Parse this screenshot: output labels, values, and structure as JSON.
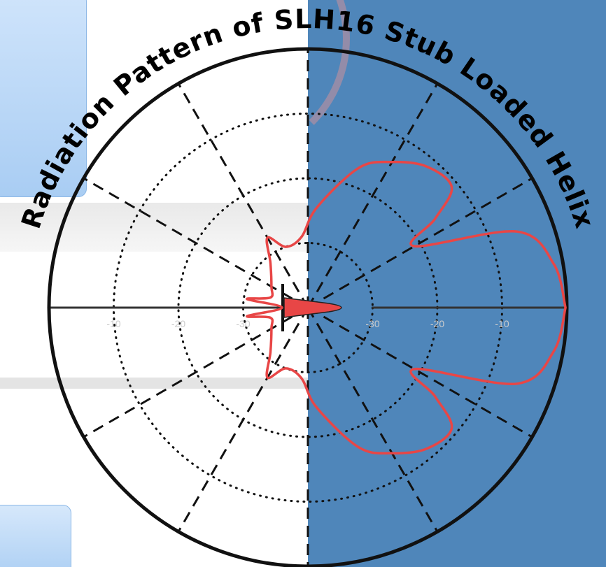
{
  "chart_data": {
    "type": "polar",
    "title": "Radiation Pattern of SLH16 Stub Loaded Helix",
    "radial_tick_labels_left": [
      "-10",
      "-20",
      "-30"
    ],
    "radial_tick_labels_right": [
      "-30",
      "-20",
      "-10"
    ],
    "radial_range_db": [
      -40,
      0
    ],
    "angular_gridline_spacing_deg": 30,
    "series": [
      {
        "color": "#e84646",
        "points": [
          {
            "angle_deg": 0,
            "db": -0.2
          },
          {
            "angle_deg": 10,
            "db": -1.4
          },
          {
            "angle_deg": 20,
            "db": -5.6
          },
          {
            "angle_deg": 30,
            "db": -21.0
          },
          {
            "angle_deg": 35,
            "db": -16.0
          },
          {
            "angle_deg": 40,
            "db": -11.0
          },
          {
            "angle_deg": 50,
            "db": -11.5
          },
          {
            "angle_deg": 60,
            "db": -14.0
          },
          {
            "angle_deg": 70,
            "db": -17.0
          },
          {
            "angle_deg": 85,
            "db": -24.5
          },
          {
            "angle_deg": 95,
            "db": -29.0
          },
          {
            "angle_deg": 110,
            "db": -30.0
          },
          {
            "angle_deg": 120,
            "db": -27.5
          },
          {
            "angle_deg": 130,
            "db": -31.0
          },
          {
            "angle_deg": 150,
            "db": -33.5
          },
          {
            "angle_deg": 165,
            "db": -34.0
          },
          {
            "angle_deg": 172,
            "db": -30.5
          },
          {
            "angle_deg": 180,
            "db": -36.0
          },
          {
            "angle_deg": 188,
            "db": -30.5
          },
          {
            "angle_deg": 195,
            "db": -34.0
          },
          {
            "angle_deg": 210,
            "db": -33.5
          },
          {
            "angle_deg": 230,
            "db": -31.0
          },
          {
            "angle_deg": 240,
            "db": -27.5
          },
          {
            "angle_deg": 250,
            "db": -30.0
          },
          {
            "angle_deg": 265,
            "db": -29.0
          },
          {
            "angle_deg": 275,
            "db": -24.5
          },
          {
            "angle_deg": 290,
            "db": -17.0
          },
          {
            "angle_deg": 300,
            "db": -14.0
          },
          {
            "angle_deg": 310,
            "db": -11.5
          },
          {
            "angle_deg": 320,
            "db": -11.0
          },
          {
            "angle_deg": 325,
            "db": -16.0
          },
          {
            "angle_deg": 330,
            "db": -21.0
          },
          {
            "angle_deg": 340,
            "db": -5.6
          },
          {
            "angle_deg": 350,
            "db": -1.4
          },
          {
            "angle_deg": 360,
            "db": -0.2
          }
        ]
      }
    ],
    "colors": {
      "background_left": "#ffffff",
      "background_right": "#4f86ba",
      "pattern": "#e84646",
      "grid": "#111111"
    }
  }
}
